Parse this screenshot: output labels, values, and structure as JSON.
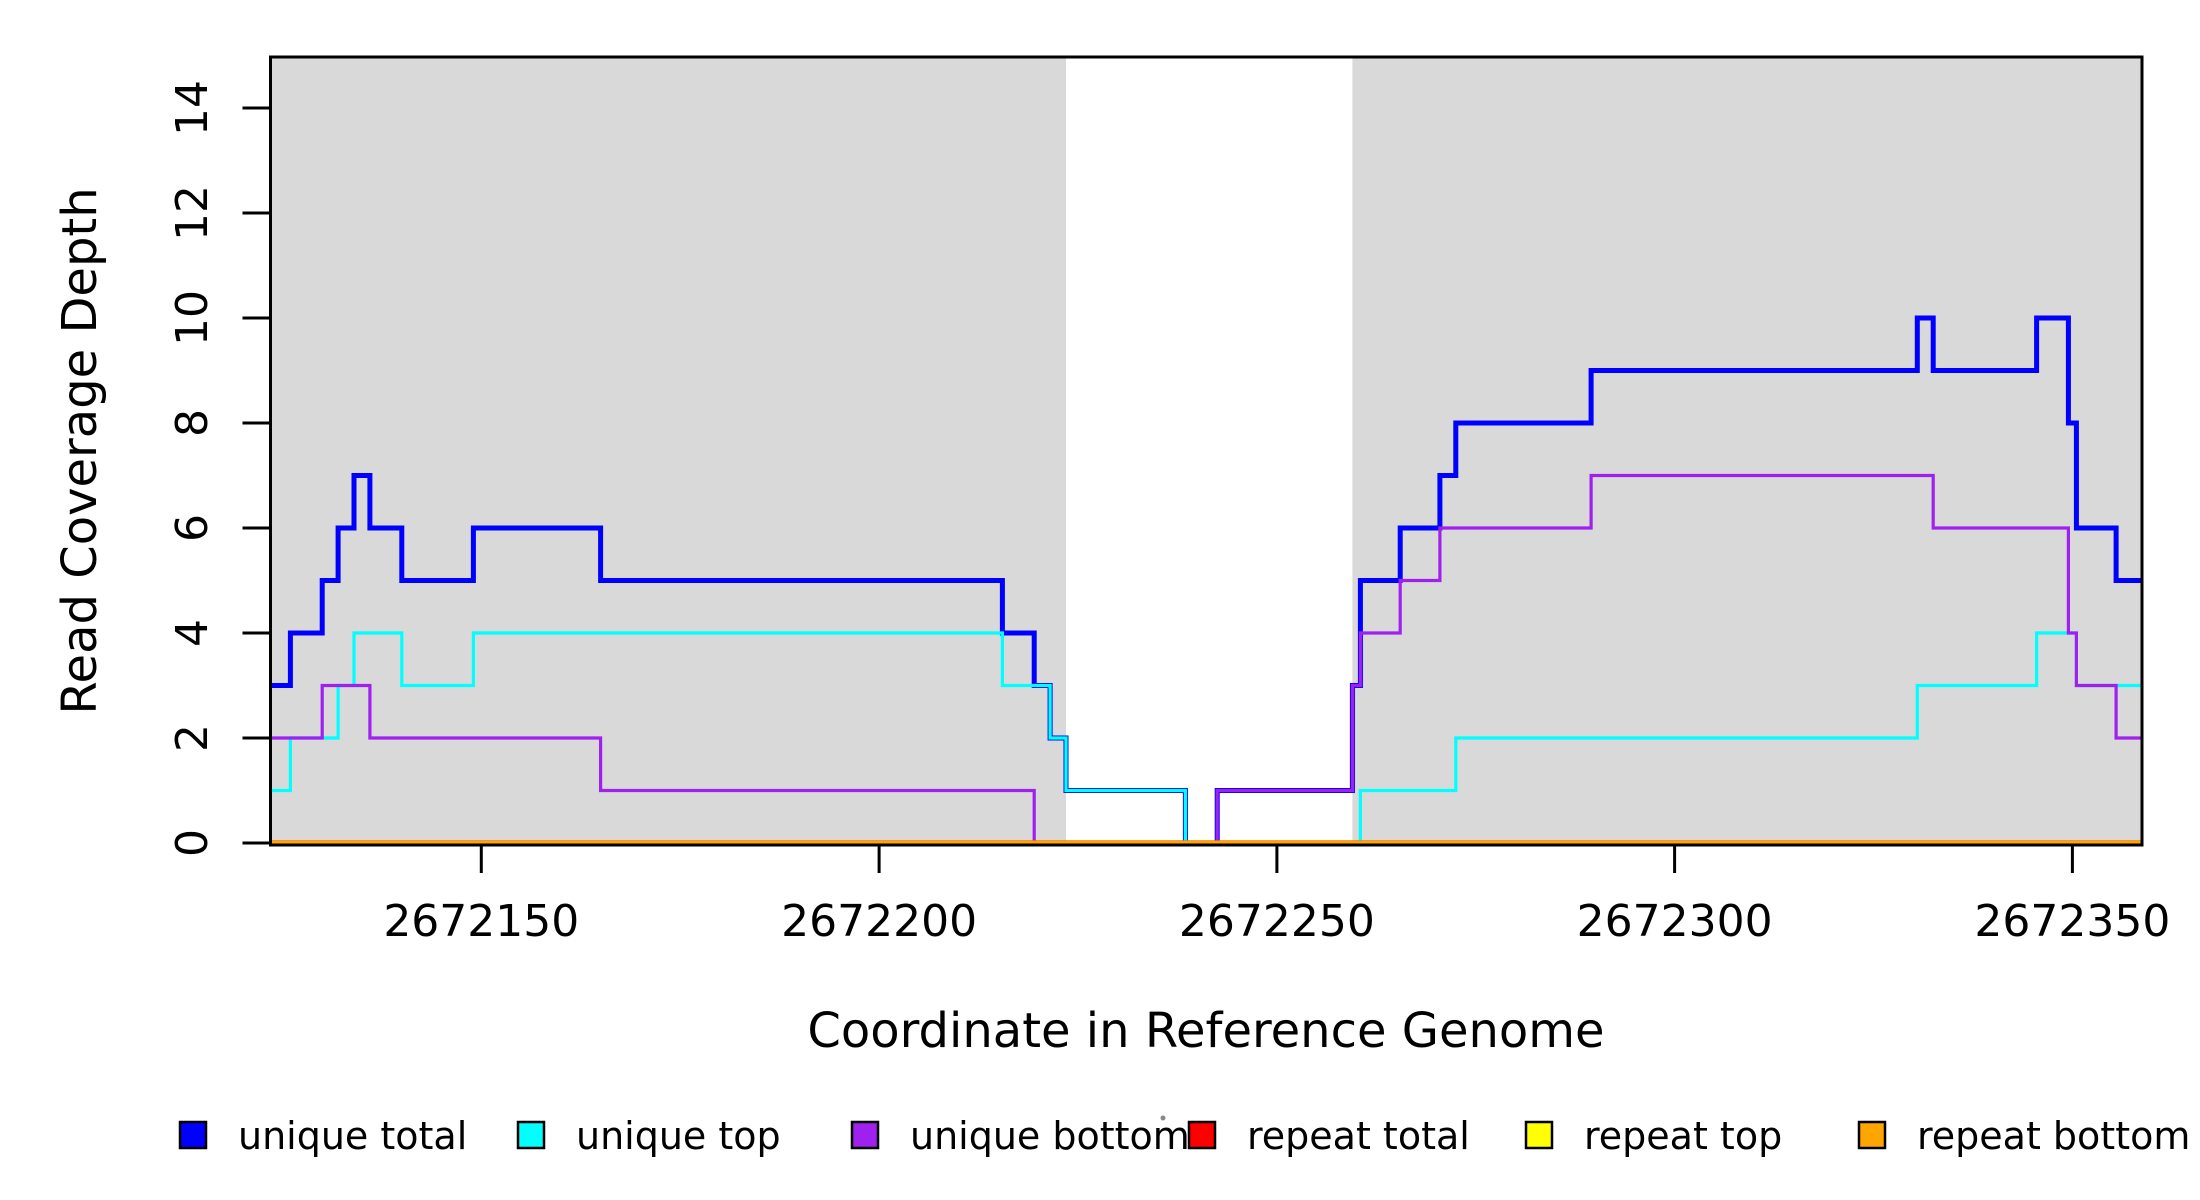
{
  "figure": {
    "xlabel": "Coordinate in Reference Genome",
    "ylabel": "Read Coverage Depth"
  },
  "chart_data": {
    "type": "line",
    "subtype": "step-coverage",
    "title": "",
    "xlabel": "Coordinate in Reference Genome",
    "ylabel": "Read Coverage Depth",
    "xlim": [
      2672123.5,
      2672358.75
    ],
    "ylim": [
      0,
      15
    ],
    "xticks": [
      2672150,
      2672200,
      2672250,
      2672300,
      2672350
    ],
    "yticks": [
      0,
      2,
      4,
      6,
      8,
      10,
      12,
      14
    ],
    "grid": false,
    "background_color": "#ffffff",
    "shaded_region_color": "#d9d9d9",
    "shaded_regions": [
      {
        "x0": 2672123.5,
        "x1": 2672223.5
      },
      {
        "x0": 2672259.5,
        "x1": 2672358.75
      }
    ],
    "legend_position": "bottom",
    "series": [
      {
        "name": "unique total",
        "color": "#0000ff",
        "line_width": 5,
        "points": [
          [
            2672123.5,
            3
          ],
          [
            2672126,
            4
          ],
          [
            2672130,
            5
          ],
          [
            2672132,
            6
          ],
          [
            2672134,
            7
          ],
          [
            2672136,
            6
          ],
          [
            2672140,
            5
          ],
          [
            2672149,
            6
          ],
          [
            2672165,
            5
          ],
          [
            2672215.5,
            4
          ],
          [
            2672219.5,
            3
          ],
          [
            2672221.5,
            2
          ],
          [
            2672223.5,
            1
          ],
          [
            2672238.5,
            0
          ],
          [
            2672242.5,
            1
          ],
          [
            2672259.5,
            3
          ],
          [
            2672260.5,
            5
          ],
          [
            2672265.5,
            6
          ],
          [
            2672270.5,
            7
          ],
          [
            2672272.5,
            8
          ],
          [
            2672289.5,
            9
          ],
          [
            2672330.5,
            10
          ],
          [
            2672332.5,
            9
          ],
          [
            2672345.5,
            10
          ],
          [
            2672349.5,
            8
          ],
          [
            2672350.5,
            6
          ],
          [
            2672355.5,
            5
          ]
        ]
      },
      {
        "name": "unique top",
        "color": "#00ffff",
        "line_width": 3.2,
        "points": [
          [
            2672123.5,
            1
          ],
          [
            2672126,
            2
          ],
          [
            2672132,
            3
          ],
          [
            2672134,
            4
          ],
          [
            2672140,
            3
          ],
          [
            2672149,
            4
          ],
          [
            2672215.5,
            3
          ],
          [
            2672221.5,
            2
          ],
          [
            2672223.5,
            1
          ],
          [
            2672238.5,
            0
          ],
          [
            2672260.5,
            1
          ],
          [
            2672272.5,
            2
          ],
          [
            2672330.5,
            3
          ],
          [
            2672345.5,
            4
          ],
          [
            2672350.5,
            3
          ]
        ]
      },
      {
        "name": "unique bottom",
        "color": "#a020f0",
        "line_width": 3.2,
        "points": [
          [
            2672123.5,
            2
          ],
          [
            2672130,
            3
          ],
          [
            2672136,
            2
          ],
          [
            2672165,
            1
          ],
          [
            2672219.5,
            0
          ],
          [
            2672242.5,
            1
          ],
          [
            2672259.5,
            3
          ],
          [
            2672260.5,
            4
          ],
          [
            2672265.5,
            5
          ],
          [
            2672270.5,
            6
          ],
          [
            2672289.5,
            7
          ],
          [
            2672332.5,
            6
          ],
          [
            2672349.5,
            4
          ],
          [
            2672350.5,
            3
          ],
          [
            2672355.5,
            2
          ]
        ]
      },
      {
        "name": "repeat total",
        "color": "#ff0000",
        "line_width": 5.5,
        "points": [
          [
            2672123.5,
            0
          ]
        ]
      },
      {
        "name": "repeat top",
        "color": "#ffff00",
        "line_width": 4.8,
        "points": [
          [
            2672123.5,
            0
          ]
        ]
      },
      {
        "name": "repeat bottom",
        "color": "#ffa500",
        "line_width": 4.5,
        "points": [
          [
            2672123.5,
            0
          ]
        ]
      }
    ],
    "legend": [
      {
        "label": "unique total",
        "color": "#0000ff"
      },
      {
        "label": "unique top",
        "color": "#00ffff"
      },
      {
        "label": "unique bottom",
        "color": "#a020f0"
      },
      {
        "label": "repeat total",
        "color": "#ff0000"
      },
      {
        "label": "repeat top",
        "color": "#ffff00"
      },
      {
        "label": "repeat bottom",
        "color": "#ffa500"
      }
    ],
    "axis_color": "#000000",
    "tick_label_color": "#000000"
  }
}
